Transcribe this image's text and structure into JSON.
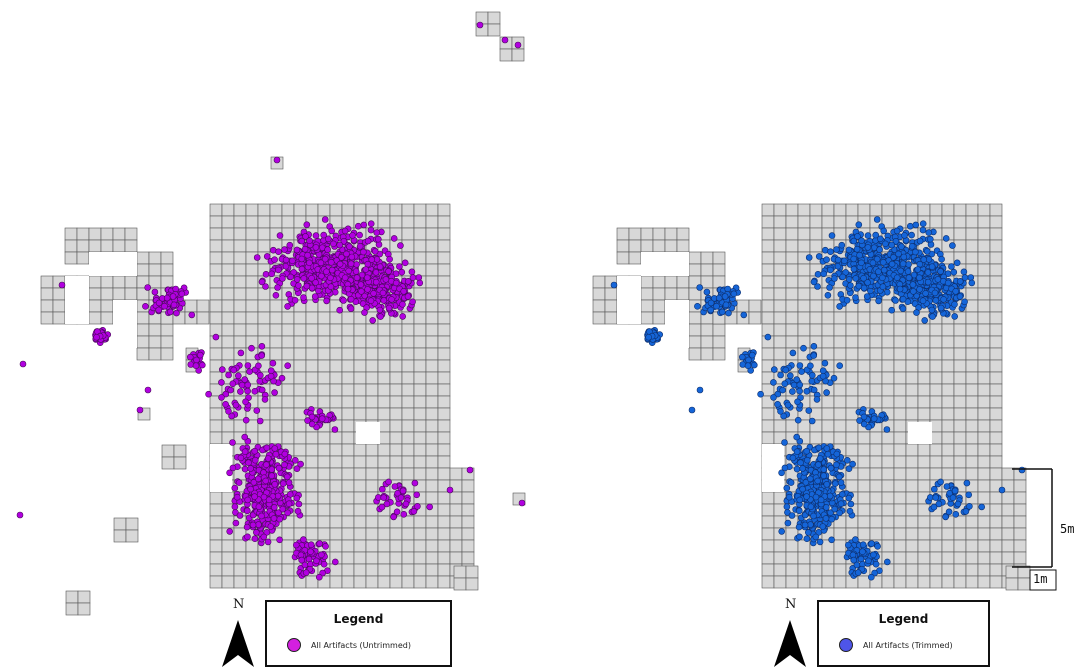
{
  "colors": {
    "grid_fill": "#d8d8d8",
    "grid_line": "#555555",
    "untrimmed": "#b100e0",
    "untrimmed_stroke": "#4a0a5a",
    "trimmed": "#1565d8",
    "trimmed_stroke": "#0d2f6e"
  },
  "left_map": {
    "north_label": "N",
    "legend": {
      "title": "Legend",
      "item_label": "All Artifacts (Untrimmed)",
      "swatch_color": "#d41fe0"
    }
  },
  "right_map": {
    "north_label": "N",
    "legend": {
      "title": "Legend",
      "item_label": "All Artifacts (Trimmed)",
      "swatch_color": "#4e55e8"
    }
  },
  "scale_bar": {
    "major_label": "5m",
    "minor_label": "1m"
  }
}
